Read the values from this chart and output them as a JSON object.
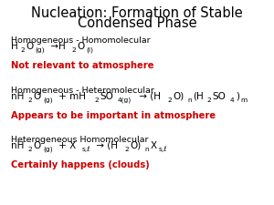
{
  "title_line1": "Nucleation: Formation of Stable",
  "title_line2": "Condensed Phase",
  "title_fontsize": 10.5,
  "title_color": "#000000",
  "bg_color": "#ffffff",
  "header_fontsize": 6.8,
  "eq_fontsize": 7.5,
  "note_fontsize": 7.2,
  "sections": [
    {
      "header": "Homogeneous - Homomolecular",
      "eq_parts": [
        {
          "text": "H",
          "style": "normal"
        },
        {
          "text": "2",
          "style": "sub"
        },
        {
          "text": "O",
          "style": "normal"
        },
        {
          "text": "(g)",
          "style": "sub"
        },
        {
          "text": " →H",
          "style": "normal"
        },
        {
          "text": "2",
          "style": "sub"
        },
        {
          "text": "O",
          "style": "normal"
        },
        {
          "text": "(l)",
          "style": "sub"
        }
      ],
      "note": "Not relevant to atmosphere",
      "note_color": "#cc0000"
    },
    {
      "header": "Homogeneous - Heteromolecular",
      "eq_parts": [
        {
          "text": "nH",
          "style": "normal"
        },
        {
          "text": "2",
          "style": "sub"
        },
        {
          "text": "O",
          "style": "normal"
        },
        {
          "text": "(g)",
          "style": "sub"
        },
        {
          "text": " + mH",
          "style": "normal"
        },
        {
          "text": "2",
          "style": "sub"
        },
        {
          "text": "SO",
          "style": "normal"
        },
        {
          "text": "4(g)",
          "style": "sub"
        },
        {
          "text": " → (H",
          "style": "normal"
        },
        {
          "text": "2",
          "style": "sub"
        },
        {
          "text": "O)",
          "style": "normal"
        },
        {
          "text": "n",
          "style": "sub"
        },
        {
          "text": "(H",
          "style": "normal"
        },
        {
          "text": "2",
          "style": "sub"
        },
        {
          "text": "SO",
          "style": "normal"
        },
        {
          "text": "4",
          "style": "sub"
        },
        {
          "text": ")",
          "style": "normal"
        },
        {
          "text": "m",
          "style": "sub"
        }
      ],
      "note": "Appears to be important in atmosphere",
      "note_color": "#cc0000"
    },
    {
      "header": "Heterogeneous Homomolecular",
      "eq_parts": [
        {
          "text": "nH",
          "style": "normal"
        },
        {
          "text": "2",
          "style": "sub"
        },
        {
          "text": "O",
          "style": "normal"
        },
        {
          "text": "(g)",
          "style": "sub"
        },
        {
          "text": " + X",
          "style": "normal"
        },
        {
          "text": "s,ℓ",
          "style": "sub"
        },
        {
          "text": " → (H",
          "style": "normal"
        },
        {
          "text": "2",
          "style": "sub"
        },
        {
          "text": "O)",
          "style": "normal"
        },
        {
          "text": "n",
          "style": "sub"
        },
        {
          "text": "X",
          "style": "normal"
        },
        {
          "text": "s,ℓ",
          "style": "sub"
        }
      ],
      "note": "Certainly happens (clouds)",
      "note_color": "#cc0000"
    }
  ]
}
